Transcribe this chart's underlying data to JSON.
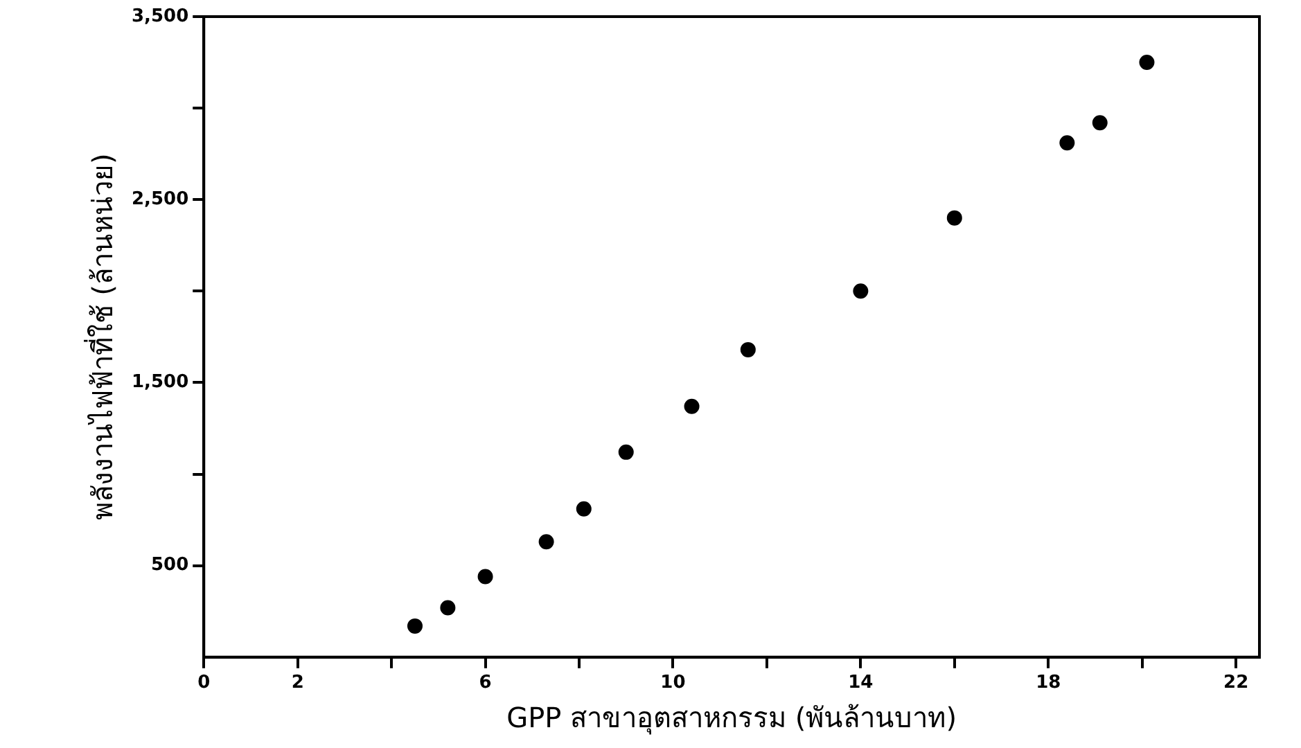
{
  "chart_data": {
    "type": "scatter",
    "xlabel": "GPP สาขาอุตสาหกรรม (พันล้านบาท)",
    "ylabel": "พลังงานไฟฟ้าที่ใช้ (ล้านหน่วย)",
    "x": [
      4.5,
      5.2,
      6.0,
      7.3,
      8.1,
      9.0,
      10.4,
      11.6,
      14.0,
      16.0,
      18.4,
      19.1,
      20.1
    ],
    "values": [
      170,
      270,
      440,
      630,
      810,
      1120,
      1370,
      1680,
      2000,
      2400,
      2810,
      2920,
      3250
    ],
    "color": "#000000",
    "marker": "circle",
    "grid": false,
    "xlim": [
      0,
      22.5
    ],
    "xticks": [
      0,
      2,
      {
        "value": 4,
        "label": null
      },
      6,
      {
        "value": 8,
        "label": null
      },
      10,
      {
        "value": 12,
        "label": null
      },
      14,
      {
        "value": 16,
        "label": null
      },
      18,
      {
        "value": 20,
        "label": null
      },
      22
    ],
    "ylim": [
      0,
      3500
    ],
    "yticks": [
      500,
      {
        "value": 1000,
        "label": null
      },
      {
        "value": 1500,
        "label": "1,500"
      },
      {
        "value": 2000,
        "label": null
      },
      {
        "value": 2500,
        "label": "2,500"
      },
      {
        "value": 3000,
        "label": null
      },
      {
        "value": 3500,
        "label": "3,500"
      }
    ]
  }
}
